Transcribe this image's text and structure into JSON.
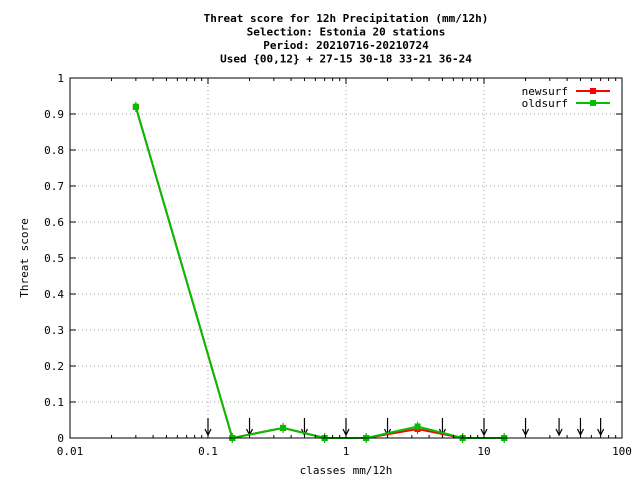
{
  "chart_data": {
    "type": "line",
    "title_lines": [
      "Threat score  for 12h Precipitation (mm/12h)",
      "Selection: Estonia     20 stations",
      "Period: 20210716-20210724",
      "Used {00,12} + 27-15 30-18 33-21 36-24"
    ],
    "xlabel": "classes mm/12h",
    "ylabel": "Threat score",
    "xscale": "log",
    "xlim": [
      0.01,
      100
    ],
    "ylim": [
      0,
      1
    ],
    "grid": true,
    "legend_position": "top-right",
    "x_ticks": [
      {
        "value": 0.01,
        "label": "0.01"
      },
      {
        "value": 0.1,
        "label": "0.1"
      },
      {
        "value": 1,
        "label": "1"
      },
      {
        "value": 10,
        "label": "10"
      },
      {
        "value": 100,
        "label": "100"
      }
    ],
    "y_ticks": [
      {
        "value": 0,
        "label": "0"
      },
      {
        "value": 0.1,
        "label": "0.1"
      },
      {
        "value": 0.2,
        "label": "0.2"
      },
      {
        "value": 0.3,
        "label": "0.3"
      },
      {
        "value": 0.4,
        "label": "0.4"
      },
      {
        "value": 0.5,
        "label": "0.5"
      },
      {
        "value": 0.6,
        "label": "0.6"
      },
      {
        "value": 0.7,
        "label": "0.7"
      },
      {
        "value": 0.8,
        "label": "0.8"
      },
      {
        "value": 0.9,
        "label": "0.9"
      },
      {
        "value": 1,
        "label": "1"
      }
    ],
    "class_limits": [
      0.1,
      0.2,
      0.5,
      1,
      2,
      5,
      10,
      20,
      35,
      50,
      70
    ],
    "series": [
      {
        "name": "newsurf",
        "color": "#ff0000",
        "x": [
          0.03,
          0.15,
          0.35,
          0.7,
          1.4,
          3.3,
          7,
          14
        ],
        "y": [
          0.92,
          0.0,
          0.028,
          0.0,
          0.0,
          0.025,
          0.0,
          0.0
        ]
      },
      {
        "name": "oldsurf",
        "color": "#00c000",
        "x": [
          0.03,
          0.15,
          0.35,
          0.7,
          1.4,
          3.3,
          7,
          14
        ],
        "y": [
          0.92,
          0.0,
          0.028,
          0.0,
          0.0,
          0.032,
          0.0,
          0.0
        ]
      }
    ]
  }
}
